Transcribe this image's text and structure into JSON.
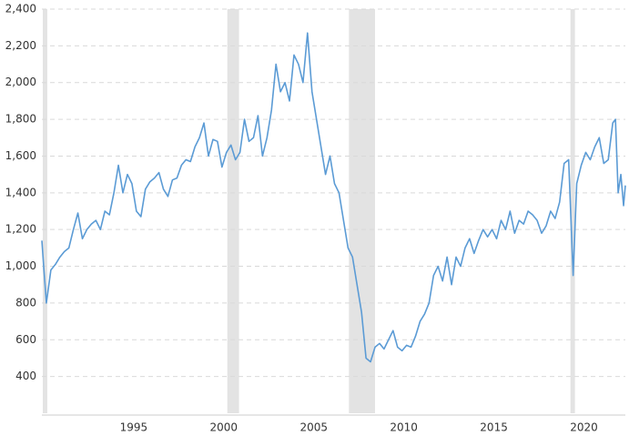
{
  "chart_data": {
    "type": "line",
    "x": [
      1989.9,
      1990.0,
      1990.15,
      1990.4,
      1990.65,
      1990.9,
      1991.15,
      1991.4,
      1991.65,
      1991.9,
      1992.15,
      1992.4,
      1992.65,
      1992.9,
      1993.15,
      1993.4,
      1993.65,
      1993.9,
      1994.15,
      1994.4,
      1994.65,
      1994.9,
      1995.15,
      1995.4,
      1995.65,
      1995.9,
      1996.15,
      1996.4,
      1996.65,
      1996.9,
      1997.15,
      1997.4,
      1997.65,
      1997.9,
      1998.15,
      1998.4,
      1998.65,
      1998.9,
      1999.15,
      1999.4,
      1999.65,
      1999.9,
      2000.15,
      2000.4,
      2000.65,
      2000.9,
      2001.15,
      2001.4,
      2001.65,
      2001.9,
      2002.15,
      2002.4,
      2002.65,
      2002.9,
      2003.15,
      2003.4,
      2003.65,
      2003.9,
      2004.15,
      2004.4,
      2004.65,
      2004.9,
      2005.15,
      2005.4,
      2005.65,
      2005.9,
      2006.15,
      2006.4,
      2006.65,
      2006.9,
      2007.15,
      2007.4,
      2007.65,
      2007.9,
      2008.15,
      2008.4,
      2008.65,
      2008.9,
      2009.15,
      2009.4,
      2009.65,
      2009.9,
      2010.15,
      2010.4,
      2010.65,
      2010.9,
      2011.15,
      2011.4,
      2011.65,
      2011.9,
      2012.15,
      2012.4,
      2012.65,
      2012.9,
      2013.15,
      2013.4,
      2013.65,
      2013.9,
      2014.15,
      2014.4,
      2014.65,
      2014.9,
      2015.15,
      2015.4,
      2015.65,
      2015.9,
      2016.15,
      2016.4,
      2016.65,
      2016.9,
      2017.15,
      2017.4,
      2017.65,
      2017.9,
      2018.15,
      2018.4,
      2018.65,
      2018.9,
      2019.15,
      2019.4,
      2019.6,
      2019.85,
      2020.1,
      2020.35,
      2020.6,
      2020.85,
      2021.1,
      2021.35,
      2021.6,
      2021.75,
      2021.9,
      2022.05,
      2022.2,
      2022.3
    ],
    "values": [
      1140,
      1000,
      800,
      980,
      1010,
      1050,
      1080,
      1100,
      1200,
      1290,
      1150,
      1200,
      1230,
      1250,
      1200,
      1300,
      1280,
      1400,
      1550,
      1400,
      1500,
      1450,
      1300,
      1270,
      1420,
      1460,
      1480,
      1510,
      1420,
      1380,
      1470,
      1480,
      1550,
      1580,
      1570,
      1650,
      1700,
      1780,
      1600,
      1690,
      1680,
      1540,
      1620,
      1660,
      1580,
      1620,
      1800,
      1680,
      1700,
      1820,
      1600,
      1700,
      1850,
      2100,
      1950,
      2000,
      1900,
      2150,
      2100,
      2000,
      2270,
      1950,
      1800,
      1650,
      1500,
      1600,
      1450,
      1400,
      1250,
      1100,
      1050,
      900,
      750,
      500,
      480,
      560,
      580,
      550,
      600,
      650,
      560,
      540,
      570,
      560,
      620,
      700,
      740,
      800,
      950,
      1000,
      920,
      1050,
      900,
      1050,
      1000,
      1100,
      1150,
      1070,
      1140,
      1200,
      1160,
      1200,
      1150,
      1250,
      1200,
      1300,
      1180,
      1250,
      1230,
      1300,
      1280,
      1250,
      1180,
      1220,
      1300,
      1260,
      1350,
      1560,
      1580,
      950,
      1450,
      1550,
      1620,
      1580,
      1650,
      1700,
      1560,
      1580,
      1780,
      1800,
      1400,
      1500,
      1330,
      1440
    ],
    "color": "#5b9bd5",
    "shaded_ranges": [
      [
        1989.95,
        1990.2
      ],
      [
        2000.2,
        2000.85
      ],
      [
        2006.95,
        2008.4
      ],
      [
        2019.25,
        2019.5
      ]
    ],
    "shade_color": "#e3e3e3",
    "xlim": [
      1989.9,
      2022.3
    ],
    "xticks": [
      1995,
      2000,
      2005,
      2010,
      2015,
      2020
    ],
    "ylim": [
      200,
      2400
    ],
    "yticks": [
      400,
      600,
      800,
      {
        "value": 1000,
        "label": "1,000"
      },
      {
        "value": 1200,
        "label": "1,200"
      },
      {
        "value": 1400,
        "label": "1,400"
      },
      {
        "value": 1600,
        "label": "1,600"
      },
      {
        "value": 1800,
        "label": "1,800"
      },
      {
        "value": 2000,
        "label": "2,000"
      },
      {
        "value": 2200,
        "label": "2,200"
      },
      {
        "value": 2400,
        "label": "2,400"
      }
    ],
    "grid": true
  }
}
